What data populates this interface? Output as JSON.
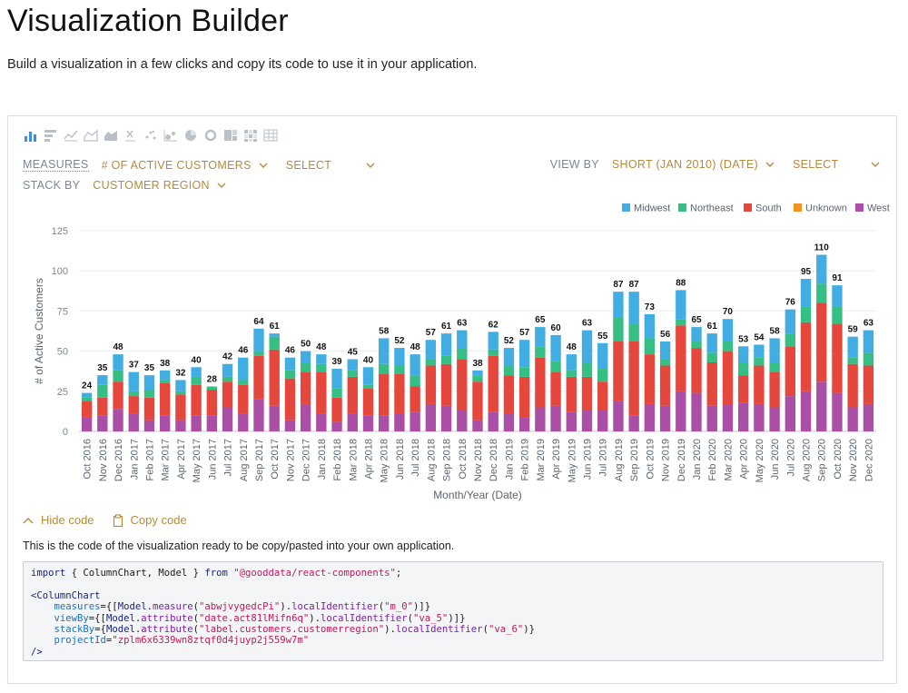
{
  "page": {
    "title": "Visualization Builder",
    "subtitle": "Build a visualization in a few clicks and copy its code to use it in your application."
  },
  "toolbar": {
    "icons": [
      "column-chart-icon",
      "bar-chart-icon",
      "line-chart-icon",
      "area-chart-icon",
      "stacked-area-chart-icon",
      "scatter-x-icon",
      "scatter-icon",
      "bubble-icon",
      "pie-chart-icon",
      "donut-chart-icon",
      "treemap-icon",
      "heatmap-icon",
      "table-icon"
    ]
  },
  "config": {
    "measures_label": "MEASURES",
    "measures_value": "# OF ACTIVE CUSTOMERS",
    "measures_select": "SELECT",
    "view_by_label": "VIEW BY",
    "view_by_value": "SHORT (JAN 2010) (DATE)",
    "view_by_select": "SELECT",
    "stack_by_label": "STACK BY",
    "stack_by_value": "CUSTOMER REGION"
  },
  "colors": {
    "Midwest": "#41ade2",
    "Northeast": "#35bf85",
    "South": "#e5473c",
    "Unknown": "#f39222",
    "West": "#ab4ea5",
    "accent": "#b58a3c"
  },
  "chart_data": {
    "type": "bar",
    "stacked": true,
    "title": "",
    "xlabel": "Month/Year (Date)",
    "ylabel": "# of Active Customers",
    "ylim": [
      0,
      125
    ],
    "yticks": [
      0,
      25,
      50,
      75,
      100,
      125
    ],
    "legend": [
      "Midwest",
      "Northeast",
      "South",
      "Unknown",
      "West"
    ],
    "legend_position": "top-right",
    "categories": [
      "Oct 2016",
      "Nov 2016",
      "Dec 2016",
      "Jan 2017",
      "Feb 2017",
      "Mar 2017",
      "Apr 2017",
      "May 2017",
      "Jun 2017",
      "Jul 2017",
      "Aug 2017",
      "Sep 2017",
      "Oct 2017",
      "Nov 2017",
      "Dec 2017",
      "Jan 2018",
      "Feb 2018",
      "Mar 2018",
      "Apr 2018",
      "May 2018",
      "Jun 2018",
      "Jul 2018",
      "Aug 2018",
      "Sep 2018",
      "Oct 2018",
      "Nov 2018",
      "Dec 2018",
      "Jan 2019",
      "Feb 2019",
      "Mar 2019",
      "Apr 2019",
      "May 2019",
      "Jun 2019",
      "Jul 2019",
      "Aug 2019",
      "Sep 2019",
      "Oct 2019",
      "Nov 2019",
      "Dec 2019",
      "Jan 2020",
      "Feb 2020",
      "Mar 2020",
      "Apr 2020",
      "May 2020",
      "Jun 2020",
      "Jul 2020",
      "Aug 2020",
      "Sep 2020",
      "Oct 2020",
      "Nov 2020",
      "Dec 2020"
    ],
    "totals": [
      24,
      35,
      48,
      37,
      35,
      38,
      32,
      40,
      28,
      42,
      46,
      64,
      61,
      46,
      50,
      48,
      39,
      45,
      40,
      58,
      52,
      48,
      57,
      61,
      63,
      38,
      62,
      52,
      57,
      65,
      60,
      48,
      63,
      55,
      87,
      87,
      73,
      56,
      88,
      65,
      61,
      70,
      53,
      54,
      58,
      76,
      95,
      110,
      91,
      59,
      63
    ],
    "series": [
      {
        "name": "West",
        "values": [
          9,
          10,
          14,
          11,
          7,
          10,
          7,
          10,
          10,
          15,
          11,
          20,
          16,
          7,
          17,
          11,
          6,
          11,
          10,
          10,
          11,
          12,
          17,
          16,
          13,
          7,
          12,
          11,
          9,
          15,
          16,
          12,
          13,
          13,
          19,
          10,
          17,
          16,
          25,
          24,
          16,
          17,
          18,
          17,
          15,
          22,
          25,
          31,
          24,
          15,
          17
        ]
      },
      {
        "name": "South",
        "values": [
          10,
          11,
          17,
          11,
          14,
          20,
          16,
          19,
          16,
          16,
          18,
          27,
          35,
          26,
          20,
          26,
          15,
          23,
          17,
          26,
          25,
          16,
          24,
          26,
          32,
          24,
          35,
          24,
          25,
          31,
          21,
          22,
          21,
          18,
          37,
          46,
          31,
          25,
          41,
          28,
          27,
          33,
          17,
          24,
          22,
          31,
          43,
          49,
          43,
          27,
          24
        ]
      },
      {
        "name": "Unknown",
        "values": [
          0,
          0,
          0,
          0,
          0,
          0,
          0,
          0,
          0,
          0,
          0,
          0,
          0,
          0,
          0,
          0,
          0,
          0,
          0,
          0,
          0,
          0,
          0,
          0,
          0,
          0,
          0,
          0,
          0,
          0,
          0,
          0,
          0,
          0,
          0,
          0,
          0,
          0,
          0,
          0,
          0,
          0,
          0,
          0,
          0,
          0,
          0,
          0,
          0,
          0,
          0
        ]
      },
      {
        "name": "Northeast",
        "values": [
          2,
          8,
          7,
          3,
          5,
          2,
          2,
          5,
          2,
          3,
          3,
          3,
          8,
          5,
          6,
          5,
          6,
          4,
          2,
          6,
          5,
          7,
          4,
          5,
          7,
          4,
          4,
          6,
          6,
          7,
          7,
          4,
          9,
          8,
          15,
          11,
          10,
          4,
          4,
          4,
          6,
          6,
          8,
          5,
          6,
          8,
          10,
          12,
          11,
          4,
          8
        ]
      },
      {
        "name": "Midwest",
        "values": [
          3,
          6,
          10,
          12,
          9,
          6,
          7,
          6,
          0,
          8,
          14,
          14,
          2,
          8,
          7,
          6,
          12,
          7,
          11,
          16,
          11,
          13,
          12,
          14,
          11,
          3,
          11,
          11,
          17,
          12,
          16,
          10,
          20,
          16,
          16,
          20,
          15,
          11,
          18,
          9,
          12,
          14,
          10,
          8,
          15,
          15,
          17,
          18,
          13,
          13,
          14
        ]
      }
    ]
  },
  "code": {
    "hide_label": "Hide code",
    "copy_label": "Copy code",
    "description": "This is the code of the visualization ready to be copy/pasted into your own application.",
    "import_kw": "import",
    "import_names": " { ColumnChart, Model } ",
    "from_kw": "from",
    "import_src": "\"@gooddata/react-components\"",
    "component_open": "<ColumnChart",
    "measures_prop": "measures",
    "measures_fn": "measure",
    "measures_id": "\"abwjvygedcPi\"",
    "measures_local": "\"m_0\"",
    "viewby_prop": "viewBy",
    "viewby_fn": "attribute",
    "viewby_id": "\"date.act81lMifn6q\"",
    "viewby_local": "\"va_5\"",
    "stackby_prop": "stackBy",
    "stackby_fn": "attribute",
    "stackby_id": "\"label.customers.customerregion\"",
    "stackby_local": "\"va_6\"",
    "project_prop": "projectId",
    "project_id": "\"zplm6x6339wn8ztqf0d4juyp2j559w7m\"",
    "component_close": "/>",
    "model_name": "Model",
    "local_fn": "localIdentifier"
  }
}
